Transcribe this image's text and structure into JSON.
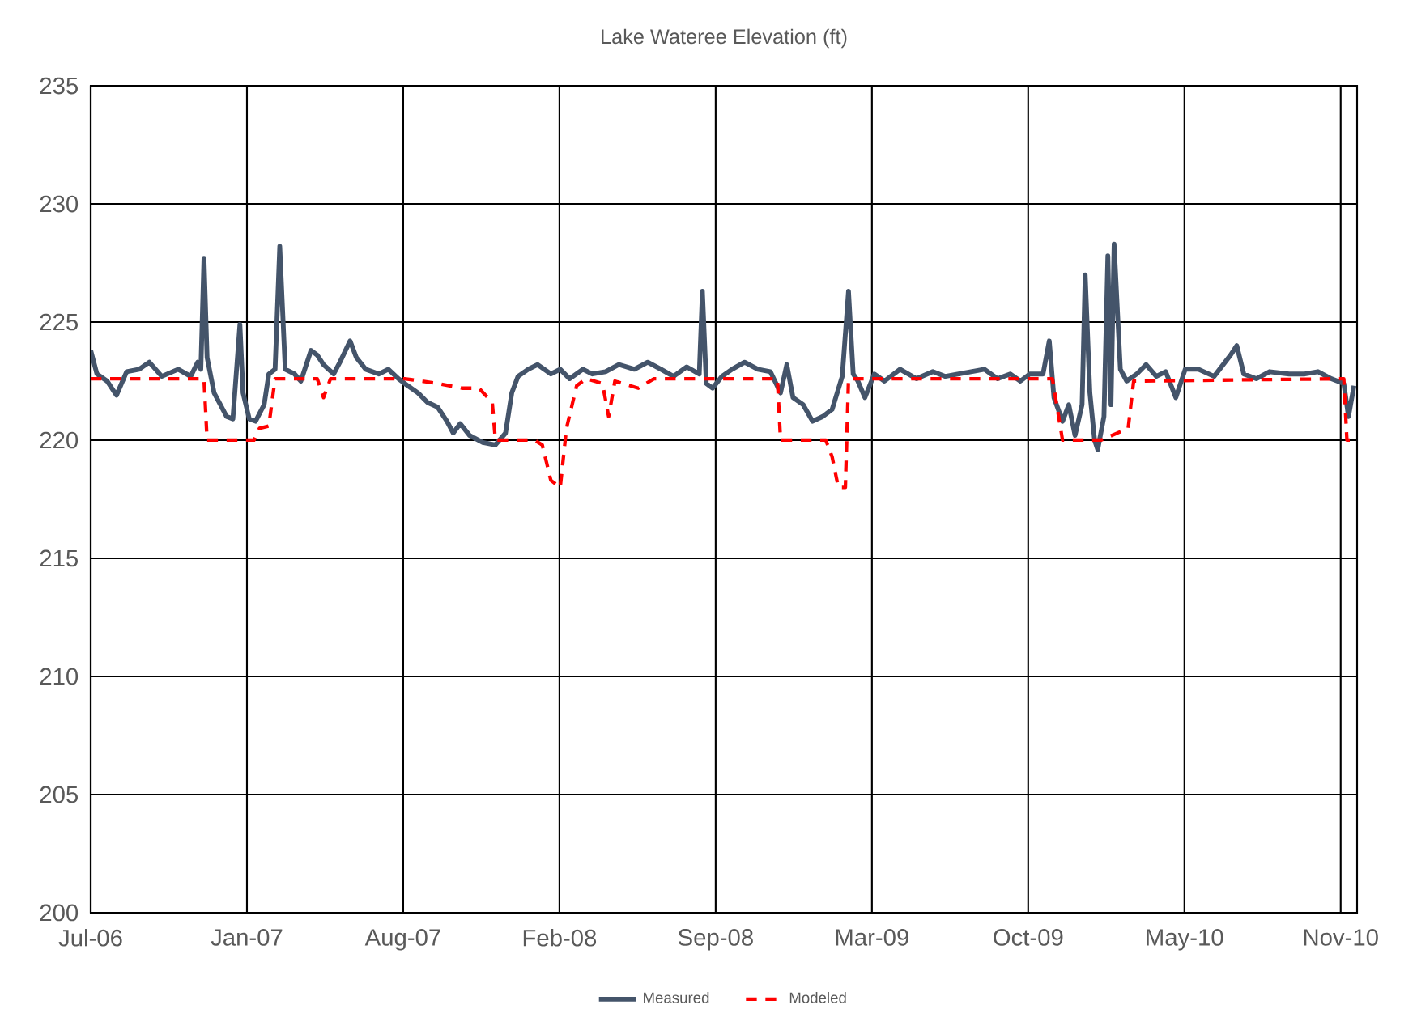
{
  "chart_data": {
    "type": "line",
    "title": "Lake Wateree Elevation (ft)",
    "xlim": [
      "2006-07-01",
      "2010-12-08"
    ],
    "xticks": [
      {
        "value": "2006-07-01",
        "label": "Jul-06"
      },
      {
        "value": "2007-01-17",
        "label": "Jan-07"
      },
      {
        "value": "2007-08-05",
        "label": "Aug-07"
      },
      {
        "value": "2008-02-21",
        "label": "Feb-08"
      },
      {
        "value": "2008-09-08",
        "label": "Sep-08"
      },
      {
        "value": "2009-03-27",
        "label": "Mar-09"
      },
      {
        "value": "2009-10-13",
        "label": "Oct-09"
      },
      {
        "value": "2010-05-01",
        "label": "May-10"
      },
      {
        "value": "2010-11-17",
        "label": "Nov-10"
      }
    ],
    "ylim": [
      200,
      235
    ],
    "yticks": [
      200,
      205,
      210,
      215,
      220,
      225,
      230,
      235
    ],
    "grid": true,
    "legend": "bottom",
    "series": [
      {
        "name": "Measured",
        "color": "#44546a",
        "line_style": "solid",
        "x": [
          "2006-07-01",
          "2006-07-09",
          "2006-07-22",
          "2006-08-03",
          "2006-08-16",
          "2006-09-01",
          "2006-09-14",
          "2006-09-30",
          "2006-10-21",
          "2006-11-06",
          "2006-11-15",
          "2006-11-19",
          "2006-11-23",
          "2006-11-27",
          "2006-12-06",
          "2006-12-14",
          "2006-12-22",
          "2006-12-30",
          "2007-01-08",
          "2007-01-12",
          "2007-01-20",
          "2007-01-28",
          "2007-02-08",
          "2007-02-14",
          "2007-02-22",
          "2007-02-28",
          "2007-03-07",
          "2007-03-19",
          "2007-03-27",
          "2007-04-09",
          "2007-04-17",
          "2007-04-25",
          "2007-05-08",
          "2007-05-16",
          "2007-05-29",
          "2007-06-06",
          "2007-06-18",
          "2007-07-05",
          "2007-07-17",
          "2007-07-30",
          "2007-08-11",
          "2007-08-24",
          "2007-09-05",
          "2007-09-18",
          "2007-09-30",
          "2007-10-08",
          "2007-10-17",
          "2007-10-29",
          "2007-11-15",
          "2007-12-01",
          "2007-12-14",
          "2007-12-22",
          "2007-12-30",
          "2008-01-12",
          "2008-01-24",
          "2008-02-10",
          "2008-02-22",
          "2008-03-05",
          "2008-03-22",
          "2008-04-03",
          "2008-04-20",
          "2008-05-07",
          "2008-05-27",
          "2008-06-13",
          "2008-06-30",
          "2008-07-16",
          "2008-08-02",
          "2008-08-18",
          "2008-08-22",
          "2008-08-27",
          "2008-09-04",
          "2008-09-16",
          "2008-09-29",
          "2008-10-15",
          "2008-11-01",
          "2008-11-17",
          "2008-11-30",
          "2008-12-08",
          "2008-12-16",
          "2008-12-29",
          "2009-01-10",
          "2009-01-23",
          "2009-02-04",
          "2009-02-17",
          "2009-02-25",
          "2009-03-03",
          "2009-03-09",
          "2009-03-18",
          "2009-03-30",
          "2009-04-12",
          "2009-05-02",
          "2009-05-23",
          "2009-06-13",
          "2009-06-29",
          "2009-07-16",
          "2009-08-01",
          "2009-08-18",
          "2009-09-04",
          "2009-09-20",
          "2009-10-03",
          "2009-10-15",
          "2009-11-01",
          "2009-11-09",
          "2009-11-15",
          "2009-11-26",
          "2009-12-04",
          "2009-12-12",
          "2009-12-21",
          "2009-12-25",
          "2009-12-31",
          "2010-01-06",
          "2010-01-10",
          "2010-01-18",
          "2010-01-23",
          "2010-01-27",
          "2010-01-31",
          "2010-02-08",
          "2010-02-16",
          "2010-03-01",
          "2010-03-13",
          "2010-03-26",
          "2010-04-07",
          "2010-04-20",
          "2010-05-02",
          "2010-05-19",
          "2010-06-08",
          "2010-06-29",
          "2010-07-07",
          "2010-07-16",
          "2010-08-01",
          "2010-08-18",
          "2010-09-12",
          "2010-10-02",
          "2010-10-19",
          "2010-11-05",
          "2010-11-21",
          "2010-11-27",
          "2010-12-04"
        ],
        "values": [
          223.8,
          222.8,
          222.5,
          221.9,
          222.9,
          223.0,
          223.3,
          222.7,
          223.0,
          222.7,
          223.3,
          223.0,
          227.7,
          223.5,
          222.0,
          221.5,
          221.0,
          220.9,
          224.9,
          222.0,
          220.9,
          220.8,
          221.5,
          222.8,
          223.0,
          228.2,
          223.0,
          222.8,
          222.5,
          223.8,
          223.6,
          223.2,
          222.8,
          223.3,
          224.2,
          223.5,
          223.0,
          222.8,
          223.0,
          222.6,
          222.3,
          222.0,
          221.6,
          221.4,
          220.8,
          220.3,
          220.7,
          220.2,
          219.9,
          219.8,
          220.3,
          222.0,
          222.7,
          223.0,
          223.2,
          222.8,
          223.0,
          222.6,
          223.0,
          222.8,
          222.9,
          223.2,
          223.0,
          223.3,
          223.0,
          222.7,
          223.1,
          222.8,
          226.3,
          222.4,
          222.2,
          222.7,
          223.0,
          223.3,
          223.0,
          222.9,
          222.0,
          223.2,
          221.8,
          221.5,
          220.8,
          221.0,
          221.3,
          222.7,
          226.3,
          222.8,
          222.5,
          221.8,
          222.8,
          222.5,
          223.0,
          222.6,
          222.9,
          222.7,
          222.8,
          222.9,
          223.0,
          222.6,
          222.8,
          222.5,
          222.8,
          222.8,
          224.2,
          221.8,
          220.8,
          221.5,
          220.2,
          221.5,
          227.0,
          222.0,
          220.0,
          219.6,
          221.0,
          227.8,
          221.5,
          228.3,
          223.0,
          222.5,
          222.8,
          223.2,
          222.7,
          222.9,
          221.8,
          223.0,
          223.0,
          222.7,
          223.6,
          224.0,
          222.8,
          222.6,
          222.9,
          222.8,
          222.8,
          222.9,
          222.6,
          222.4,
          221.0,
          222.3
        ]
      },
      {
        "name": "Modeled",
        "color": "#ff0000",
        "line_style": "dashed",
        "x": [
          "2006-07-01",
          "2006-11-23",
          "2006-11-27",
          "2007-01-26",
          "2007-02-02",
          "2007-02-14",
          "2007-02-22",
          "2007-04-17",
          "2007-04-25",
          "2007-05-04",
          "2007-08-07",
          "2007-09-18",
          "2007-10-19",
          "2007-11-10",
          "2007-11-27",
          "2007-12-01",
          "2008-01-20",
          "2008-01-30",
          "2008-02-10",
          "2008-02-22",
          "2008-03-01",
          "2008-03-14",
          "2008-03-26",
          "2008-04-16",
          "2008-04-24",
          "2008-05-02",
          "2008-06-01",
          "2008-06-21",
          "2008-11-26",
          "2008-11-30",
          "2009-01-27",
          "2009-02-04",
          "2009-02-12",
          "2009-02-21",
          "2009-02-25",
          "2009-03-09",
          "2009-11-13",
          "2009-11-26",
          "2010-01-14",
          "2010-02-18",
          "2010-02-25",
          "2010-11-21",
          "2010-11-25",
          "2010-12-08"
        ],
        "values": [
          222.6,
          222.6,
          220.0,
          220.0,
          220.5,
          220.6,
          222.6,
          222.6,
          221.8,
          222.6,
          222.6,
          222.4,
          222.2,
          222.2,
          221.6,
          220.0,
          220.0,
          219.8,
          218.3,
          218.0,
          220.5,
          222.3,
          222.6,
          222.4,
          221.0,
          222.5,
          222.2,
          222.6,
          222.6,
          220.0,
          220.0,
          219.3,
          218.0,
          218.0,
          222.6,
          222.6,
          222.6,
          220.0,
          220.0,
          220.5,
          222.5,
          222.6,
          220.0,
          220.0
        ]
      }
    ]
  }
}
